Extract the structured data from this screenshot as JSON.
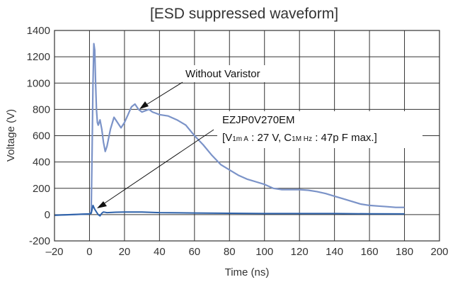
{
  "chart_data": {
    "type": "line",
    "title": "[ESD suppressed waveform]",
    "xlabel": "Time (ns)",
    "ylabel": "Voltage (V)",
    "xlim": [
      -20,
      200
    ],
    "ylim": [
      -200,
      1400
    ],
    "x_ticks": [
      "–20",
      "0",
      "20",
      "40",
      "60",
      "80",
      "100",
      "120",
      "140",
      "160",
      "180",
      "200"
    ],
    "y_ticks": [
      "-200",
      "0",
      "200",
      "400",
      "600",
      "800",
      "1000",
      "1200",
      "1400"
    ],
    "grid": true,
    "series": [
      {
        "color": "#7b93c8",
        "x": [
          -20,
          -10,
          0,
          1,
          1.5,
          2,
          2.5,
          3,
          3.5,
          4,
          4.5,
          5,
          6,
          7,
          8,
          9,
          10,
          12,
          14,
          16,
          18,
          20,
          22,
          24,
          26,
          28,
          30,
          32,
          34,
          36,
          38,
          40,
          45,
          50,
          55,
          60,
          65,
          70,
          75,
          80,
          85,
          90,
          95,
          100,
          105,
          110,
          115,
          120,
          125,
          130,
          135,
          140,
          145,
          150,
          155,
          160,
          165,
          170,
          175,
          180
        ],
        "y": [
          -5,
          0,
          5,
          20,
          500,
          1000,
          1300,
          1250,
          1000,
          800,
          700,
          680,
          720,
          650,
          550,
          480,
          520,
          650,
          740,
          700,
          660,
          700,
          760,
          820,
          840,
          800,
          780,
          790,
          800,
          780,
          770,
          760,
          750,
          720,
          680,
          600,
          530,
          450,
          380,
          340,
          300,
          270,
          250,
          230,
          200,
          190,
          190,
          190,
          185,
          175,
          160,
          140,
          120,
          100,
          80,
          70,
          65,
          60,
          55,
          55
        ]
      },
      {
        "color": "#2e62aa",
        "x": [
          -20,
          -10,
          0,
          1,
          2,
          3,
          4,
          5,
          6,
          7,
          8,
          10,
          15,
          20,
          30,
          40,
          60,
          80,
          100,
          120,
          140,
          160,
          180
        ],
        "y": [
          -5,
          0,
          5,
          10,
          70,
          40,
          20,
          0,
          -10,
          10,
          20,
          15,
          18,
          20,
          20,
          15,
          12,
          10,
          8,
          8,
          8,
          6,
          5
        ]
      }
    ],
    "annotations": [
      {
        "text": "Without Varistor"
      },
      {
        "line1": "EZJP0V270EM",
        "line2": {
          "prefix": "[V",
          "sub1": "1m A",
          "mid": " : 27 V, C",
          "sub2": "1M Hz",
          "suffix": " : 47p F max.]"
        }
      }
    ]
  }
}
